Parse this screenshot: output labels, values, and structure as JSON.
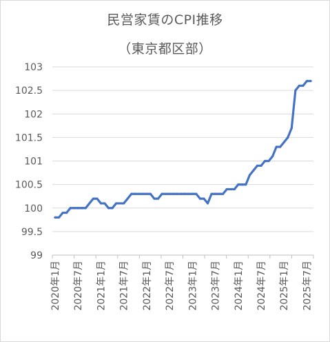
{
  "chart_data": {
    "type": "line",
    "title": "民営家賃のCPI推移",
    "subtitle": "（東京都区部）",
    "ylim": [
      99,
      103
    ],
    "yticks": [
      "103",
      "102.5",
      "102",
      "101.5",
      "101",
      "100.5",
      "100",
      "99.5",
      "99"
    ],
    "ytick_values": [
      103,
      102.5,
      102,
      101.5,
      101,
      100.5,
      100,
      99.5,
      99
    ],
    "xticks": [
      "2020年1月",
      "2020年7月",
      "2021年1月",
      "2021年7月",
      "2022年1月",
      "2022年7月",
      "2023年1月",
      "2023年7月",
      "2024年1月",
      "2024年7月",
      "2025年1月",
      "2025年7月"
    ],
    "xtick_month_index": [
      0,
      6,
      12,
      18,
      24,
      30,
      36,
      42,
      48,
      54,
      60,
      66
    ],
    "grid": true,
    "legend": "none",
    "line_color": "#4472c4",
    "series": [
      {
        "values": [
          99.8,
          99.8,
          99.9,
          99.9,
          100.0,
          100.0,
          100.0,
          100.0,
          100.0,
          100.1,
          100.2,
          100.2,
          100.1,
          100.1,
          100.0,
          100.0,
          100.1,
          100.1,
          100.1,
          100.2,
          100.3,
          100.3,
          100.3,
          100.3,
          100.3,
          100.3,
          100.2,
          100.2,
          100.3,
          100.3,
          100.3,
          100.3,
          100.3,
          100.3,
          100.3,
          100.3,
          100.3,
          100.3,
          100.2,
          100.2,
          100.1,
          100.3,
          100.3,
          100.3,
          100.3,
          100.4,
          100.4,
          100.4,
          100.5,
          100.5,
          100.5,
          100.7,
          100.8,
          100.9,
          100.9,
          101.0,
          101.0,
          101.1,
          101.3,
          101.3,
          101.4,
          101.5,
          101.7,
          102.5,
          102.6,
          102.6,
          102.7,
          102.7
        ]
      }
    ]
  }
}
